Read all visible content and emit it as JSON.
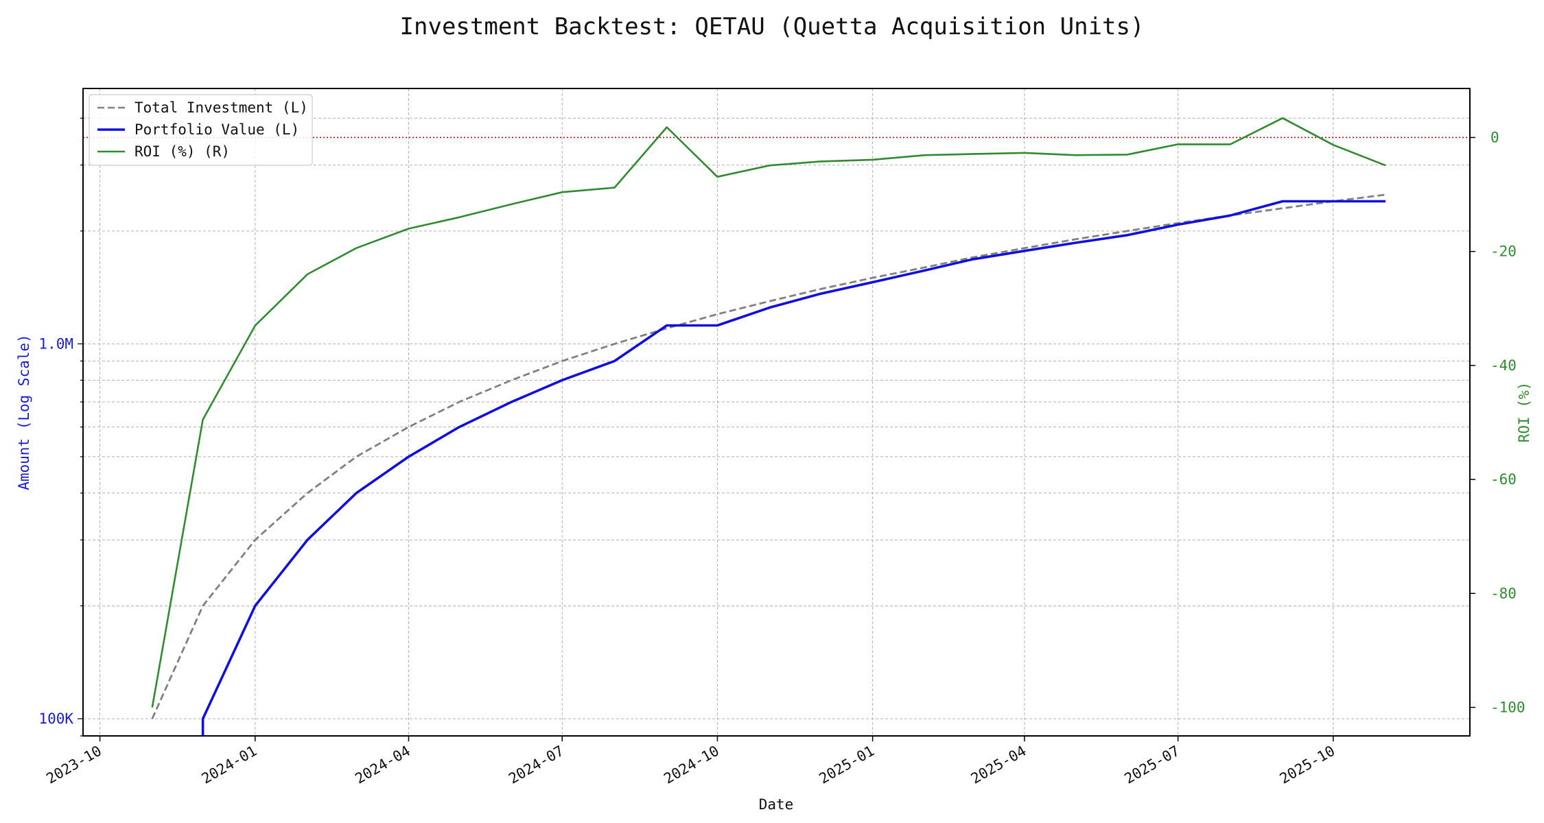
{
  "chart_data": {
    "type": "line",
    "title": "Investment Backtest: QETAU (Quetta Acquisition Units)",
    "xlabel": "Date",
    "ylabel_left": "Amount (Log Scale)",
    "ylabel_right": "ROI (%)",
    "left_scale": "log",
    "xlim": [
      "2023-09-21",
      "2025-12-21"
    ],
    "ylim_left": [
      90000,
      4800000
    ],
    "ylim_right": [
      -105,
      8.6
    ],
    "grid": true,
    "legend_position": "top-left",
    "x_ticks": [
      "2023-10",
      "2024-01",
      "2024-04",
      "2024-07",
      "2024-10",
      "2025-01",
      "2025-04",
      "2025-07",
      "2025-10"
    ],
    "x_tick_dates": [
      "2023-10-01",
      "2024-01-01",
      "2024-04-01",
      "2024-07-01",
      "2024-10-01",
      "2025-01-01",
      "2025-04-01",
      "2025-07-01",
      "2025-10-01"
    ],
    "left_ticks": [
      {
        "value": 100000,
        "label": "100K"
      },
      {
        "value": 1000000,
        "label": "1.0M"
      }
    ],
    "right_ticks": [
      0,
      -20,
      -40,
      -60,
      -80,
      -100
    ],
    "reference_line": {
      "axis": "right",
      "value": 0,
      "color": "#cc0000",
      "style": "dotted"
    },
    "dates": [
      "2023-11-01",
      "2023-12-01",
      "2024-01-01",
      "2024-02-01",
      "2024-03-01",
      "2024-04-01",
      "2024-05-01",
      "2024-06-01",
      "2024-07-01",
      "2024-08-01",
      "2024-09-01",
      "2024-10-01",
      "2024-11-01",
      "2024-12-01",
      "2025-01-01",
      "2025-02-01",
      "2025-03-01",
      "2025-04-01",
      "2025-05-01",
      "2025-06-01",
      "2025-07-01",
      "2025-08-01",
      "2025-09-01",
      "2025-10-01",
      "2025-11-01"
    ],
    "series": [
      {
        "name": "Total Investment (L)",
        "axis": "left",
        "color": "#808080",
        "style": "dashed",
        "values": [
          100000,
          200000,
          300000,
          400000,
          500000,
          600000,
          700000,
          800000,
          900000,
          1000000,
          1100000,
          1200000,
          1300000,
          1400000,
          1500000,
          1600000,
          1700000,
          1800000,
          1900000,
          2000000,
          2100000,
          2200000,
          2300000,
          2400000,
          2500000
        ]
      },
      {
        "name": "Portfolio Value (L)",
        "axis": "left",
        "color": "#1010dd",
        "style": "solid",
        "values": [
          null,
          100000,
          200000,
          300000,
          400000,
          500000,
          600000,
          700000,
          800000,
          900000,
          1120000,
          1120000,
          1250000,
          1360000,
          1460000,
          1570000,
          1680000,
          1770000,
          1860000,
          1950000,
          2080000,
          2200000,
          2400000,
          2400000,
          2400000
        ]
      },
      {
        "name": "ROI (%) (R)",
        "axis": "right",
        "color": "#2e8b2e",
        "style": "solid",
        "values": [
          -100,
          -49.5,
          -33,
          -24,
          -19.4,
          -16,
          -14,
          -11.7,
          -9.6,
          -8.8,
          1.8,
          -6.9,
          -4.9,
          -4.2,
          -3.9,
          -3.1,
          -2.9,
          -2.7,
          -3.1,
          -3.0,
          -1.2,
          -1.2,
          3.4,
          -1.3,
          -4.9
        ]
      }
    ]
  }
}
